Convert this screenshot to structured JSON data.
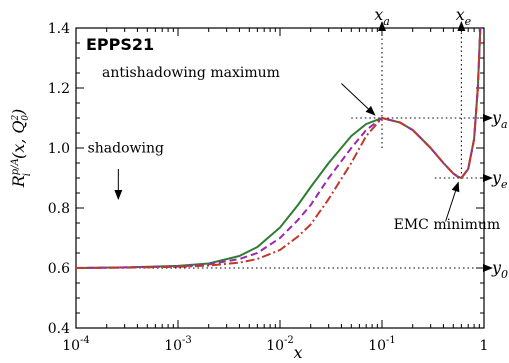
{
  "chart_data": {
    "type": "line",
    "title": "EPPS21",
    "xlabel": "x",
    "ylabel": "R_i^{p/A}(x, Q_0^2)",
    "x_scale": "log",
    "xlim": [
      0.0001,
      1
    ],
    "ylim": [
      0.4,
      1.4
    ],
    "x_tick_labels": [
      "10^-4",
      "10^-3",
      "10^-2",
      "10^-1",
      "1"
    ],
    "y_tick_labels": [
      "0.4",
      "0.6",
      "0.8",
      "1.0",
      "1.2",
      "1.4"
    ],
    "series": [
      {
        "color": "#2e7d32",
        "style": "solid",
        "points": [
          [
            0.0001,
            0.6
          ],
          [
            0.0003,
            0.602
          ],
          [
            0.001,
            0.607
          ],
          [
            0.002,
            0.615
          ],
          [
            0.004,
            0.64
          ],
          [
            0.006,
            0.67
          ],
          [
            0.01,
            0.735
          ],
          [
            0.015,
            0.81
          ],
          [
            0.02,
            0.87
          ],
          [
            0.03,
            0.95
          ],
          [
            0.05,
            1.04
          ],
          [
            0.07,
            1.08
          ],
          [
            0.1,
            1.1
          ],
          [
            0.15,
            1.085
          ],
          [
            0.2,
            1.06
          ],
          [
            0.3,
            1.0
          ],
          [
            0.4,
            0.95
          ],
          [
            0.5,
            0.915
          ],
          [
            0.55,
            0.905
          ],
          [
            0.6,
            0.9
          ],
          [
            0.7,
            0.93
          ],
          [
            0.8,
            1.03
          ],
          [
            0.87,
            1.2
          ],
          [
            0.92,
            1.4
          ]
        ]
      },
      {
        "color": "#9c27b0",
        "style": "dashed",
        "points": [
          [
            0.0001,
            0.6
          ],
          [
            0.0003,
            0.602
          ],
          [
            0.001,
            0.605
          ],
          [
            0.002,
            0.612
          ],
          [
            0.004,
            0.63
          ],
          [
            0.006,
            0.65
          ],
          [
            0.01,
            0.7
          ],
          [
            0.015,
            0.76
          ],
          [
            0.02,
            0.81
          ],
          [
            0.03,
            0.9
          ],
          [
            0.05,
            1.0
          ],
          [
            0.07,
            1.06
          ],
          [
            0.1,
            1.1
          ],
          [
            0.15,
            1.085
          ],
          [
            0.2,
            1.06
          ],
          [
            0.3,
            1.0
          ],
          [
            0.4,
            0.95
          ],
          [
            0.5,
            0.915
          ],
          [
            0.55,
            0.905
          ],
          [
            0.6,
            0.9
          ],
          [
            0.7,
            0.93
          ],
          [
            0.8,
            1.03
          ],
          [
            0.87,
            1.2
          ],
          [
            0.92,
            1.4
          ]
        ]
      },
      {
        "color": "#c0392b",
        "style": "dashdot",
        "points": [
          [
            0.0001,
            0.6
          ],
          [
            0.0003,
            0.601
          ],
          [
            0.001,
            0.604
          ],
          [
            0.002,
            0.608
          ],
          [
            0.004,
            0.618
          ],
          [
            0.006,
            0.63
          ],
          [
            0.01,
            0.66
          ],
          [
            0.015,
            0.705
          ],
          [
            0.02,
            0.745
          ],
          [
            0.03,
            0.83
          ],
          [
            0.05,
            0.95
          ],
          [
            0.07,
            1.04
          ],
          [
            0.1,
            1.1
          ],
          [
            0.15,
            1.085
          ],
          [
            0.2,
            1.06
          ],
          [
            0.3,
            1.0
          ],
          [
            0.4,
            0.95
          ],
          [
            0.5,
            0.915
          ],
          [
            0.55,
            0.905
          ],
          [
            0.6,
            0.9
          ],
          [
            0.7,
            0.93
          ],
          [
            0.8,
            1.03
          ],
          [
            0.87,
            1.2
          ],
          [
            0.92,
            1.4
          ]
        ]
      }
    ],
    "annotations": {
      "shadowing": "shadowing",
      "antishadowing": "antishadowing maximum",
      "emc": "EMC minimum"
    },
    "markers": {
      "x_a": {
        "label": "x_a",
        "x": 0.1,
        "y": 1.1
      },
      "x_e": {
        "label": "x_e",
        "x": 0.6,
        "y": 0.9
      },
      "y_a": {
        "label": "y_a",
        "y": 1.1
      },
      "y_e": {
        "label": "y_e",
        "y": 0.9
      },
      "y_0": {
        "label": "y_0",
        "y": 0.6
      }
    },
    "grid": false,
    "legend": "none"
  }
}
